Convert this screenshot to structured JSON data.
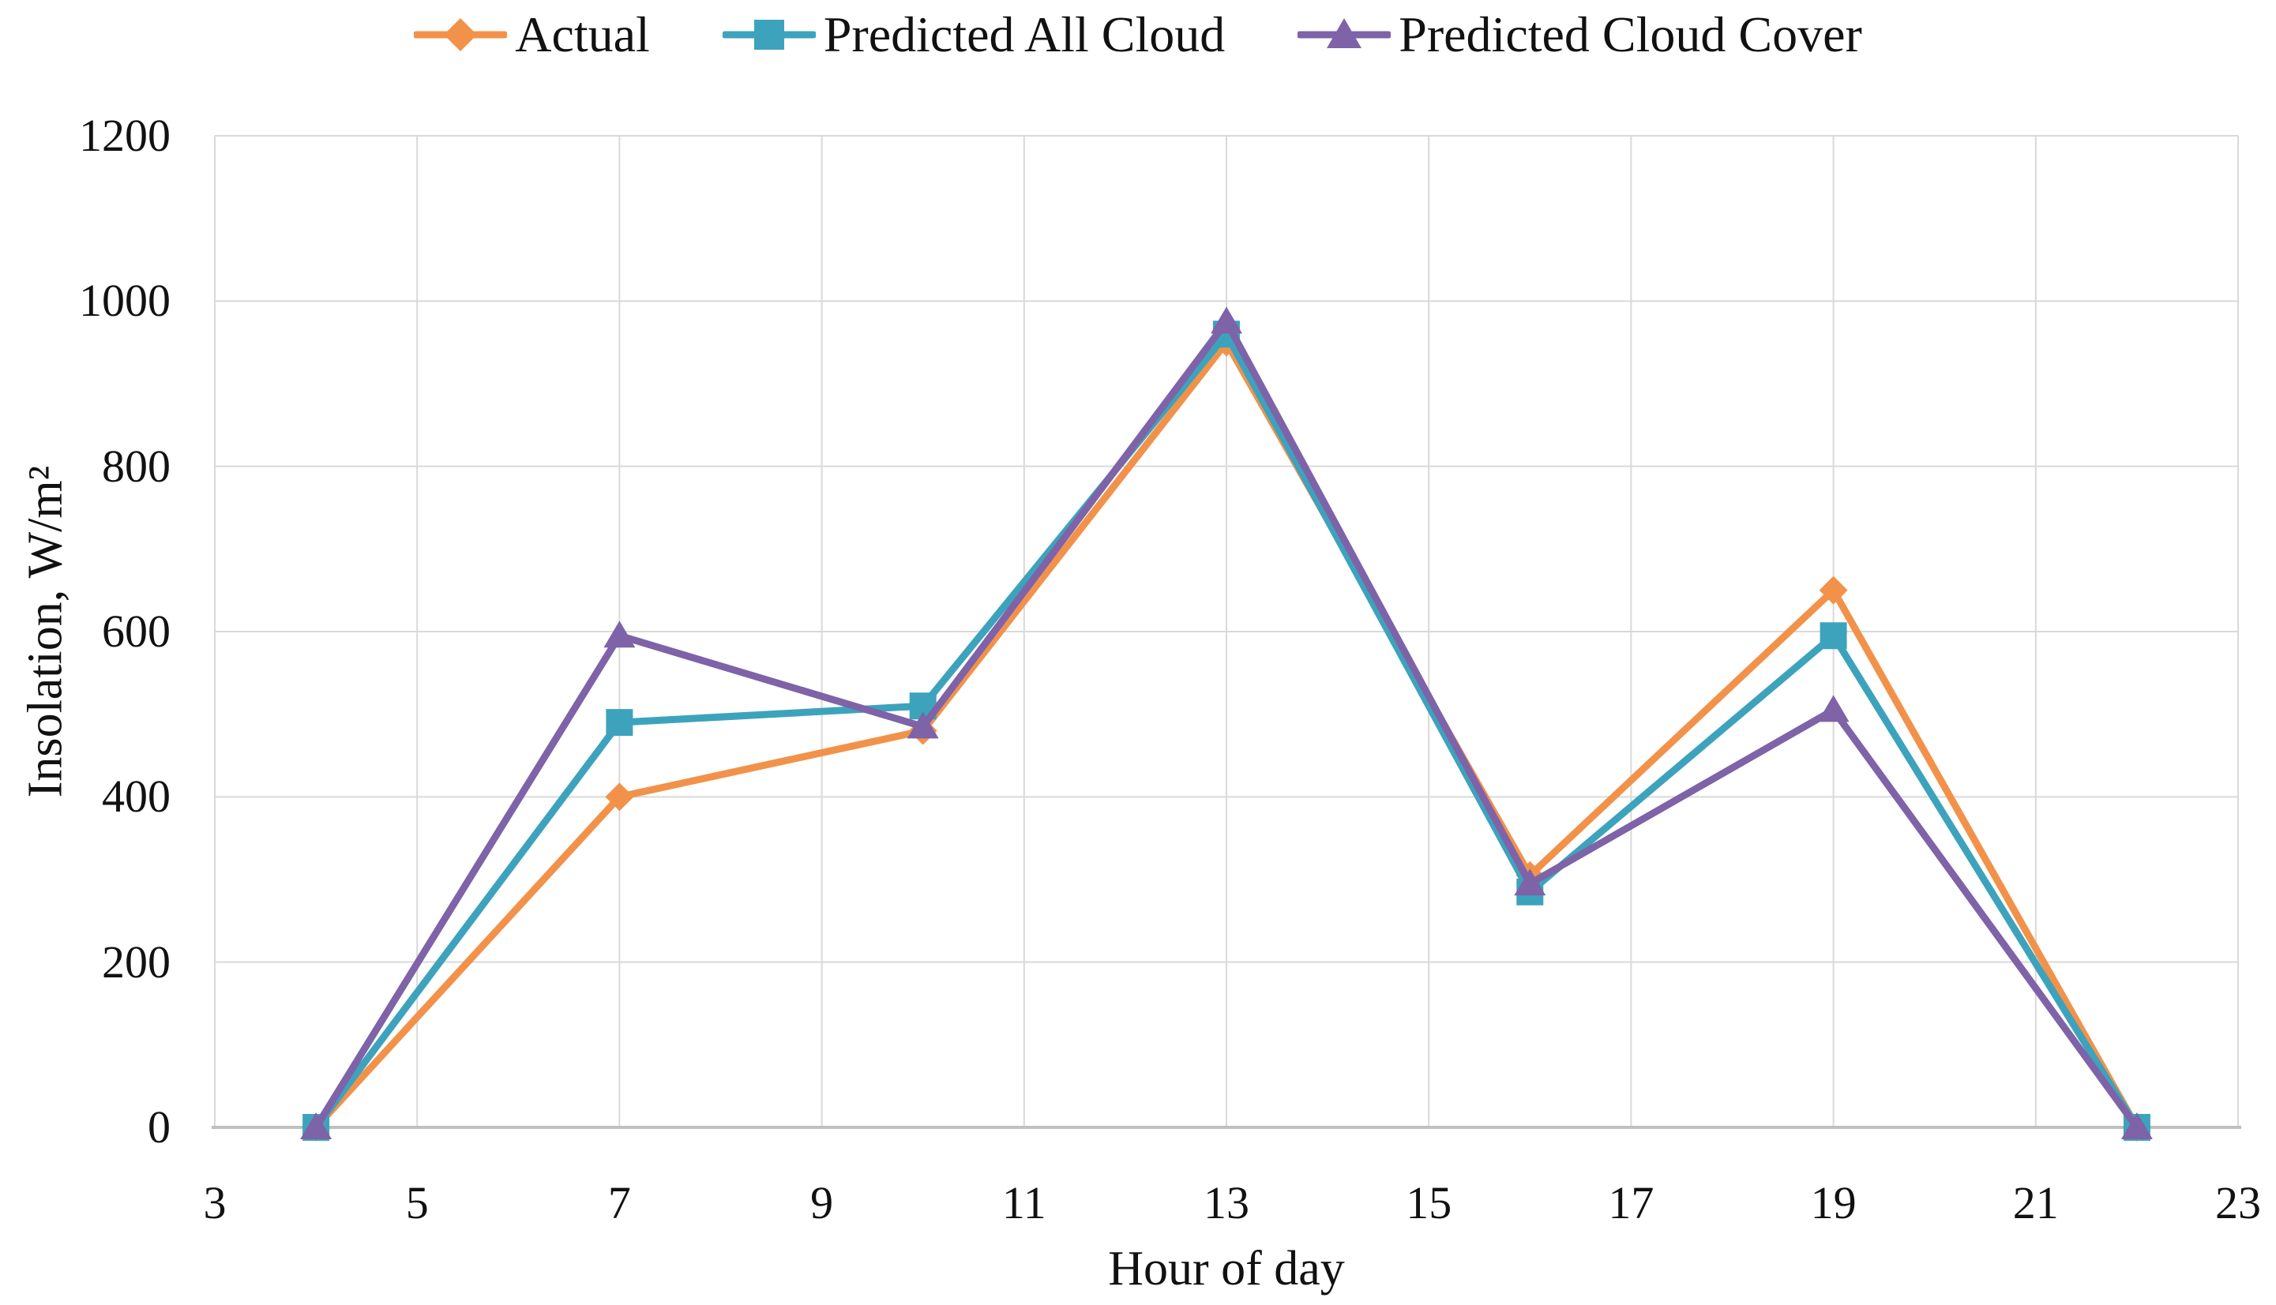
{
  "chart_data": {
    "type": "line",
    "title": "",
    "xlabel": "Hour of day",
    "ylabel": "Insolation, W/m²",
    "x": [
      4,
      7,
      10,
      13,
      16,
      19,
      22
    ],
    "series": [
      {
        "name": "Actual",
        "color": "#F2924A",
        "marker": "diamond",
        "values": [
          0,
          400,
          480,
          950,
          305,
          650,
          0
        ]
      },
      {
        "name": "Predicted All Cloud",
        "color": "#3DA3BC",
        "marker": "square",
        "values": [
          0,
          490,
          510,
          960,
          285,
          595,
          0
        ]
      },
      {
        "name": "Predicted Cloud Cover",
        "color": "#7E63A8",
        "marker": "triangle",
        "values": [
          0,
          595,
          485,
          975,
          295,
          505,
          0
        ]
      }
    ],
    "xlim": [
      3,
      23
    ],
    "ylim": [
      0,
      1200
    ],
    "x_ticks": [
      3,
      5,
      7,
      9,
      11,
      13,
      15,
      17,
      19,
      21,
      23
    ],
    "y_ticks": [
      0,
      200,
      400,
      600,
      800,
      1000,
      1200
    ],
    "grid": true,
    "legend_position": "top",
    "line_width": 9,
    "colors": {
      "gridline": "#D9D9D9",
      "axis_line": "#C0C0C0",
      "text": "#111111",
      "background": "#FFFFFF"
    }
  }
}
